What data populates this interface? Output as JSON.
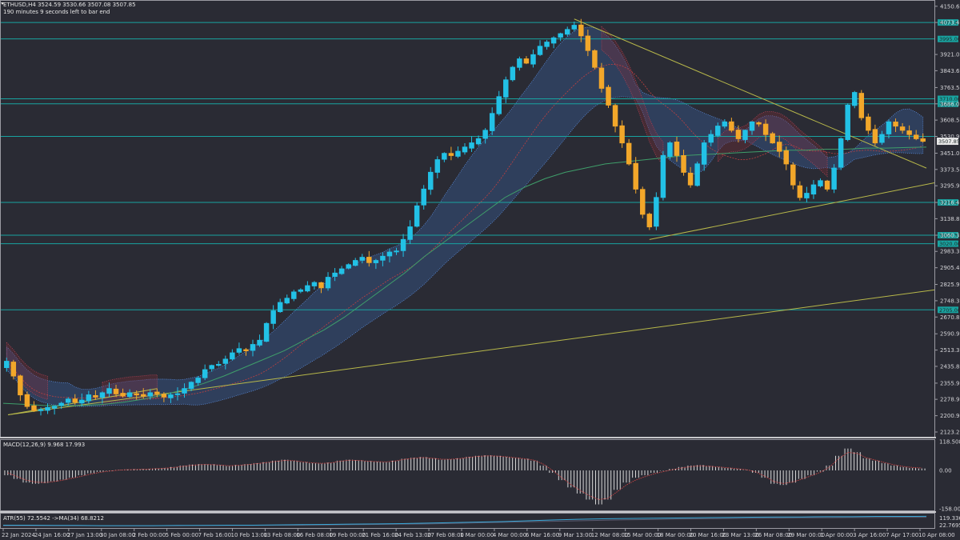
{
  "header": {
    "symbol_line": "ETHUSD,H4  3524.59 3530.66 3507.08 3507.85",
    "timer_line": "190 minutes 9 seconds left to bar end"
  },
  "chart_data": {
    "type": "candlestick",
    "symbol": "ETHUSD",
    "timeframe": "H4",
    "ohlc_current": {
      "open": 3524.59,
      "high": 3530.66,
      "low": 3507.08,
      "close": 3507.85
    },
    "ylim": [
      2123.25,
      4150
    ],
    "y_ticks": [
      "4150.65",
      "4073.45",
      "3921.05",
      "3843.65",
      "3763.55",
      "3686.00",
      "3608.55",
      "3530.90",
      "3451.00",
      "3373.55",
      "3295.90",
      "3216.45",
      "3138.85",
      "3060.35",
      "2983.35",
      "2905.45",
      "2825.95",
      "2748.35",
      "2670.85",
      "2590.90",
      "2513.35",
      "2435.80",
      "2355.90",
      "2278.90",
      "2200.90",
      "2123.25"
    ],
    "current_price_tag": "3507.85",
    "levels": [
      4073.45,
      3995.0,
      3710.0,
      3686.0,
      3530.9,
      3216.45,
      3060.35,
      3020.0,
      2705.0
    ],
    "level_tags": [
      "4073.45",
      "3995.00",
      "3710.00",
      "3686.00",
      "",
      "3216.45",
      "3060.35",
      "3020.00",
      "2705.00"
    ],
    "x_labels": [
      "22 Jan 2024",
      "24 Jan 16:00",
      "27 Jan 13:00",
      "30 Jan 08:00",
      "2 Feb 00:00",
      "5 Feb 00:00",
      "7 Feb 16:00",
      "10 Feb 13:00",
      "13 Feb 08:00",
      "16 Feb 08:00",
      "19 Feb 00:00",
      "21 Feb 16:00",
      "24 Feb 13:00",
      "27 Feb 08:00",
      "1 Mar 00:00",
      "4 Mar 00:00",
      "6 Mar 16:00",
      "9 Mar 13:00",
      "12 Mar 08:00",
      "15 Mar 00:00",
      "18 Mar 00:00",
      "20 Mar 16:00",
      "23 Mar 13:00",
      "26 Mar 08:00",
      "29 Mar 00:00",
      "1 Apr 00:00",
      "3 Apr 16:00",
      "7 Apr 17:00",
      "10 Apr 08:00"
    ],
    "close_path": [
      2460,
      2390,
      2300,
      2245,
      2225,
      2230,
      2240,
      2245,
      2260,
      2280,
      2265,
      2275,
      2300,
      2290,
      2310,
      2330,
      2305,
      2295,
      2310,
      2300,
      2295,
      2310,
      2305,
      2290,
      2300,
      2305,
      2330,
      2360,
      2380,
      2420,
      2440,
      2445,
      2470,
      2500,
      2520,
      2510,
      2540,
      2560,
      2640,
      2700,
      2740,
      2760,
      2790,
      2800,
      2820,
      2835,
      2810,
      2860,
      2880,
      2900,
      2920,
      2940,
      2955,
      2930,
      2940,
      2960,
      2980,
      2985,
      3040,
      3100,
      3200,
      3280,
      3360,
      3420,
      3450,
      3440,
      3460,
      3480,
      3500,
      3520,
      3560,
      3640,
      3720,
      3800,
      3860,
      3900,
      3880,
      3920,
      3960,
      3980,
      4000,
      4020,
      4040,
      4060,
      4010,
      3940,
      3860,
      3760,
      3680,
      3580,
      3500,
      3400,
      3280,
      3160,
      3100,
      3240,
      3440,
      3500,
      3440,
      3360,
      3300,
      3400,
      3500,
      3540,
      3580,
      3600,
      3560,
      3520,
      3560,
      3600,
      3590,
      3540,
      3500,
      3460,
      3400,
      3300,
      3240,
      3260,
      3300,
      3320,
      3280,
      3380,
      3520,
      3680,
      3740,
      3620,
      3560,
      3500,
      3540,
      3600,
      3580,
      3560,
      3540,
      3520,
      3507.85
    ],
    "moving_average": [
      2260,
      2255,
      2250,
      2248,
      2250,
      2255,
      2265,
      2280,
      2300,
      2325,
      2355,
      2390,
      2430,
      2470,
      2510,
      2560,
      2610,
      2670,
      2740,
      2810,
      2880,
      2960,
      3030,
      3100,
      3170,
      3240,
      3290,
      3330,
      3360,
      3380,
      3400,
      3410,
      3420,
      3430,
      3440,
      3445,
      3450,
      3455,
      3460,
      3465,
      3465,
      3470,
      3470,
      3475,
      3475,
      3478,
      3480
    ],
    "ichimoku_cloud": "upper/lower spans shown as dotted blue (bullish) and red (bearish) kumo",
    "trendlines": "upper: from high near 4090 (12 Mar) down-right; lower: from 3050 (19 Mar) up-right; long-term: from 2210 (22 Jan) up-right",
    "macd": {
      "label": "MACD(12,26,9) 9.968 17.993",
      "ylim": [
        -158.0,
        118.508
      ],
      "y_ticks": [
        "118.508",
        "0.00",
        "-158.0061"
      ],
      "histogram": [
        -20,
        -35,
        -50,
        -55,
        -52,
        -45,
        -38,
        -30,
        -20,
        -12,
        -6,
        -2,
        2,
        4,
        5,
        6,
        8,
        10,
        14,
        20,
        24,
        26,
        25,
        22,
        18,
        22,
        26,
        30,
        34,
        40,
        44,
        40,
        34,
        30,
        28,
        32,
        40,
        44,
        42,
        38,
        36,
        34,
        40,
        48,
        52,
        55,
        50,
        44,
        46,
        50,
        56,
        60,
        62,
        60,
        56,
        52,
        48,
        40,
        20,
        -10,
        -40,
        -70,
        -95,
        -120,
        -140,
        -120,
        -80,
        -50,
        -30,
        -20,
        -10,
        -2,
        6,
        14,
        20,
        22,
        18,
        14,
        10,
        6,
        2,
        -10,
        -30,
        -55,
        -60,
        -50,
        -35,
        -20,
        -5,
        20,
        60,
        90,
        75,
        50,
        40,
        30,
        20,
        14,
        10,
        8
      ],
      "signal": [
        -10,
        -25,
        -40,
        -48,
        -50,
        -46,
        -40,
        -32,
        -24,
        -15,
        -8,
        -3,
        1,
        3,
        4,
        5,
        7,
        9,
        12,
        17,
        21,
        24,
        24,
        22,
        19,
        21,
        24,
        28,
        32,
        37,
        41,
        40,
        35,
        31,
        29,
        31,
        38,
        42,
        41,
        38,
        36,
        35,
        39,
        46,
        50,
        53,
        50,
        46,
        46,
        49,
        54,
        58,
        60,
        59,
        56,
        52,
        48,
        42,
        26,
        0,
        -30,
        -58,
        -82,
        -104,
        -120,
        -115,
        -88,
        -60,
        -40,
        -26,
        -14,
        -5,
        3,
        10,
        16,
        19,
        17,
        14,
        11,
        7,
        3,
        -6,
        -24,
        -46,
        -54,
        -48,
        -36,
        -22,
        -8,
        14,
        48,
        74,
        70,
        52,
        42,
        32,
        23,
        16,
        12,
        10
      ]
    },
    "atr": {
      "label": "ATR(55) 72.5542 ->MA(34) 68.8212",
      "y_ticks": [
        "119.3361",
        "22.7695"
      ],
      "values": [
        38,
        38,
        37,
        37,
        36,
        36,
        36,
        37,
        37,
        38,
        38,
        39,
        40,
        41,
        42,
        43,
        44,
        46,
        48,
        50,
        52,
        55,
        58,
        61,
        63,
        64,
        65,
        66,
        67,
        68,
        69,
        70,
        70,
        71,
        71,
        72,
        72,
        72.5542
      ],
      "ma_values": [
        36,
        36,
        36,
        36,
        36,
        36,
        36,
        36,
        37,
        37,
        37,
        38,
        38,
        39,
        40,
        41,
        42,
        43,
        45,
        47,
        49,
        51,
        53,
        55,
        57,
        59,
        60,
        62,
        63,
        64,
        65,
        66,
        67,
        67,
        68,
        68,
        68.5,
        68.8212
      ]
    },
    "grid": false,
    "legend": "none"
  }
}
